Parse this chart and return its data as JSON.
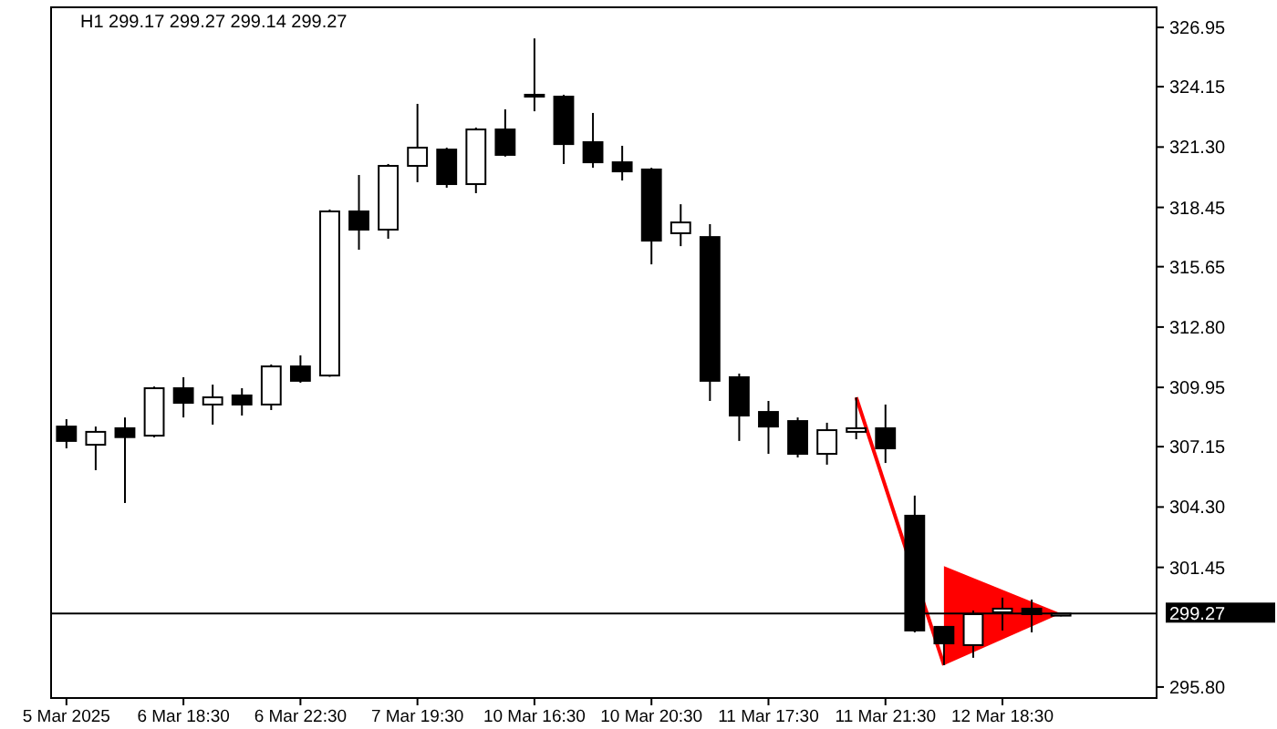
{
  "chart_data": {
    "type": "candlestick",
    "title": "H1  299.17 299.27 299.14 299.27",
    "categories": [
      "5 Mar 2025",
      null,
      null,
      null,
      "6 Mar 18:30",
      null,
      null,
      null,
      "6 Mar 22:30",
      null,
      null,
      null,
      "7 Mar 19:30",
      null,
      null,
      null,
      "10 Mar 16:30",
      null,
      null,
      null,
      "10 Mar 20:30",
      null,
      null,
      null,
      "11 Mar 17:30",
      null,
      null,
      null,
      "11 Mar 21:30",
      null,
      null,
      null,
      "12 Mar 18:30",
      null,
      null
    ],
    "ohlc": [
      [
        308.1,
        308.45,
        307.07,
        307.42
      ],
      [
        307.24,
        308.1,
        306.04,
        307.85
      ],
      [
        308.02,
        308.53,
        304.49,
        307.6
      ],
      [
        307.67,
        309.99,
        307.59,
        309.91
      ],
      [
        309.91,
        310.43,
        308.53,
        309.22
      ],
      [
        309.14,
        310.08,
        308.19,
        309.48
      ],
      [
        309.57,
        309.91,
        308.62,
        309.14
      ],
      [
        309.14,
        311.03,
        308.88,
        310.94
      ],
      [
        310.94,
        311.46,
        310.17,
        310.26
      ],
      [
        310.51,
        318.35,
        310.45,
        318.26
      ],
      [
        318.26,
        319.98,
        316.45,
        317.4
      ],
      [
        317.4,
        320.5,
        316.97,
        320.41
      ],
      [
        320.41,
        323.34,
        319.64,
        321.27
      ],
      [
        321.18,
        321.27,
        319.38,
        319.55
      ],
      [
        319.55,
        322.22,
        319.12,
        322.13
      ],
      [
        322.13,
        323.08,
        320.85,
        320.93
      ],
      [
        323.77,
        326.43,
        322.99,
        323.68
      ],
      [
        323.68,
        323.77,
        320.5,
        321.44
      ],
      [
        321.53,
        322.91,
        320.32,
        320.58
      ],
      [
        320.58,
        321.36,
        319.72,
        320.15
      ],
      [
        320.24,
        320.32,
        315.76,
        316.88
      ],
      [
        317.23,
        318.6,
        316.62,
        317.74
      ],
      [
        317.05,
        317.66,
        309.31,
        310.26
      ],
      [
        310.43,
        310.6,
        307.42,
        308.62
      ],
      [
        308.79,
        309.31,
        306.81,
        308.1
      ],
      [
        308.36,
        308.53,
        306.64,
        306.81
      ],
      [
        306.81,
        308.28,
        306.3,
        307.93
      ],
      [
        307.85,
        309.48,
        307.5,
        308.02
      ],
      [
        308.02,
        309.14,
        306.38,
        307.07
      ],
      [
        303.89,
        304.84,
        298.38,
        298.47
      ],
      [
        298.64,
        298.64,
        296.83,
        297.86
      ],
      [
        297.78,
        299.41,
        297.18,
        299.24
      ],
      [
        299.33,
        300.02,
        298.47,
        299.5
      ],
      [
        299.5,
        299.93,
        298.38,
        299.24
      ],
      [
        299.17,
        299.27,
        299.14,
        299.27
      ]
    ],
    "ylim": [
      295.28,
      327.9
    ],
    "yticks": [
      {
        "value": 295.8,
        "label": "295.80"
      },
      301.45,
      {
        "value": 304.3,
        "label": "304.30"
      },
      307.15,
      309.95,
      {
        "value": 312.8,
        "label": "312.80"
      },
      315.65,
      318.45,
      {
        "value": 321.3,
        "label": "321.30"
      },
      324.15,
      326.95
    ],
    "ref_lines": [
      {
        "axis": "y",
        "value": 299.27,
        "label": "299.27",
        "color": "#000000"
      }
    ],
    "grid": false
  }
}
